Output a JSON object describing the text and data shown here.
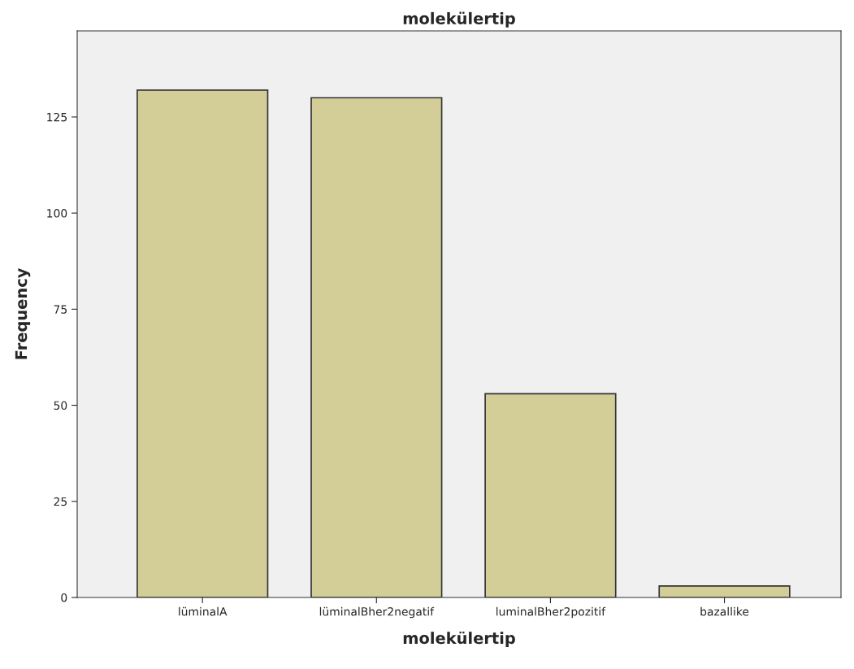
{
  "chart_data": {
    "type": "bar",
    "title": "molekülertip",
    "xlabel": "molekülertip",
    "ylabel": "Frequency",
    "categories": [
      "lüminalA",
      "lüminalBher2negatif",
      "luminalBher2pozitif",
      "bazallike"
    ],
    "values": [
      132,
      130,
      53,
      3
    ],
    "color": "#d3ce97",
    "ylim": [
      0,
      147.4
    ],
    "yticks": [
      0,
      25,
      50,
      75,
      100,
      125
    ],
    "grid": false
  }
}
